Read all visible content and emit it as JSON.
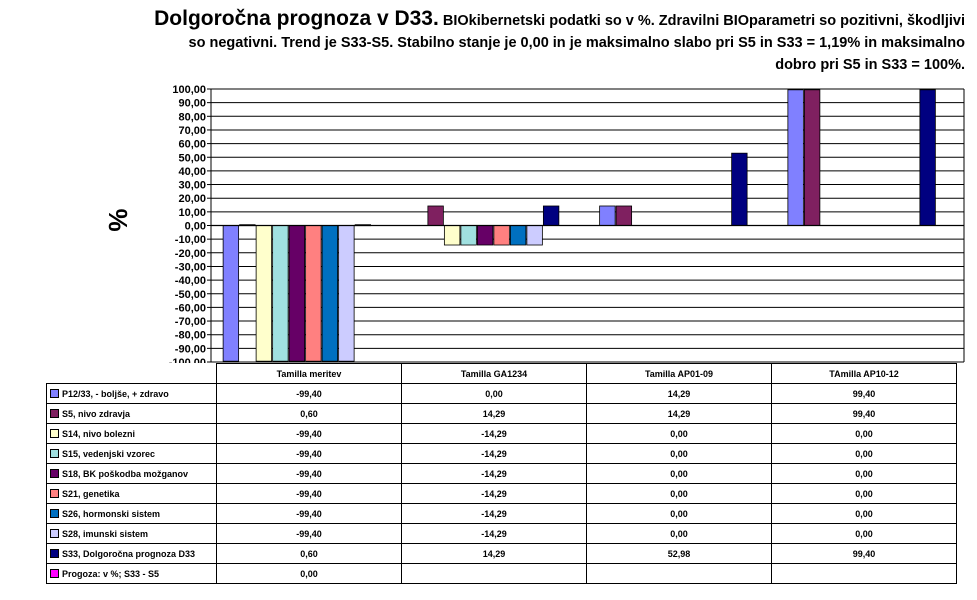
{
  "title_main": "Dolgoročna prognoza v D33.",
  "title_rest": "BIOkibernetski podatki so v %. Zdravilni BIOparametri so pozitivni, škodljivi so negativni. Trend je S33-S5. Stabilno stanje je 0,00 in je maksimalno slabo pri S5 in S33 = 1,19% in maksimalno dobro pri S5 in S33 = 100%.",
  "ylabel": "%",
  "chart_data": {
    "type": "bar",
    "title": "Dolgoročna prognoza v D33.",
    "ylabel": "%",
    "ylim": [
      -100,
      100
    ],
    "grid": true,
    "categories": [
      "Tamilla meritev",
      "Tamilla GA1234",
      "Tamilla AP01-09",
      "TAmilla AP10-12"
    ],
    "ytick_labels": [
      "100,00",
      "90,00",
      "80,00",
      "70,00",
      "60,00",
      "50,00",
      "40,00",
      "30,00",
      "20,00",
      "10,00",
      "0,00",
      "-10,00",
      "-20,00",
      "-30,00",
      "-40,00",
      "-50,00",
      "-60,00",
      "-70,00",
      "-80,00",
      "-90,00",
      "-100,00"
    ],
    "series": [
      {
        "name": "P12/33, - boljše, + zdravo",
        "color": "#8080ff",
        "values": [
          -99.4,
          0.0,
          14.29,
          99.4
        ],
        "labels": [
          "-99,40",
          "0,00",
          "14,29",
          "99,40"
        ]
      },
      {
        "name": "S5, nivo zdravja",
        "color": "#7f2060",
        "values": [
          0.6,
          14.29,
          14.29,
          99.4
        ],
        "labels": [
          "0,60",
          "14,29",
          "14,29",
          "99,40"
        ]
      },
      {
        "name": "S14, nivo bolezni",
        "color": "#ffffcc",
        "values": [
          -99.4,
          -14.29,
          0.0,
          0.0
        ],
        "labels": [
          "-99,40",
          "-14,29",
          "0,00",
          "0,00"
        ]
      },
      {
        "name": "S15, vedenjski vzorec",
        "color": "#a0e0e0",
        "values": [
          -99.4,
          -14.29,
          0.0,
          0.0
        ],
        "labels": [
          "-99,40",
          "-14,29",
          "0,00",
          "0,00"
        ]
      },
      {
        "name": "S18, BK poškodba možganov",
        "color": "#660066",
        "values": [
          -99.4,
          -14.29,
          0.0,
          0.0
        ],
        "labels": [
          "-99,40",
          "-14,29",
          "0,00",
          "0,00"
        ]
      },
      {
        "name": "S21, genetika",
        "color": "#ff8080",
        "values": [
          -99.4,
          -14.29,
          0.0,
          0.0
        ],
        "labels": [
          "-99,40",
          "-14,29",
          "0,00",
          "0,00"
        ]
      },
      {
        "name": "S26, hormonski sistem",
        "color": "#0070c0",
        "values": [
          -99.4,
          -14.29,
          0.0,
          0.0
        ],
        "labels": [
          "-99,40",
          "-14,29",
          "0,00",
          "0,00"
        ]
      },
      {
        "name": "S28, imunski sistem",
        "color": "#ccccff",
        "values": [
          -99.4,
          -14.29,
          0.0,
          0.0
        ],
        "labels": [
          "-99,40",
          "-14,29",
          "0,00",
          "0,00"
        ]
      },
      {
        "name": "S33, Dolgoročna prognoza D33",
        "color": "#000080",
        "values": [
          0.6,
          14.29,
          52.98,
          99.4
        ],
        "labels": [
          "0,60",
          "14,29",
          "52,98",
          "99,40"
        ]
      },
      {
        "name": "Progoza: v %; S33 - S5",
        "color": "#ff00ff",
        "values": [
          0.0,
          null,
          null,
          null
        ],
        "labels": [
          "0,00",
          "",
          "",
          ""
        ]
      }
    ]
  }
}
